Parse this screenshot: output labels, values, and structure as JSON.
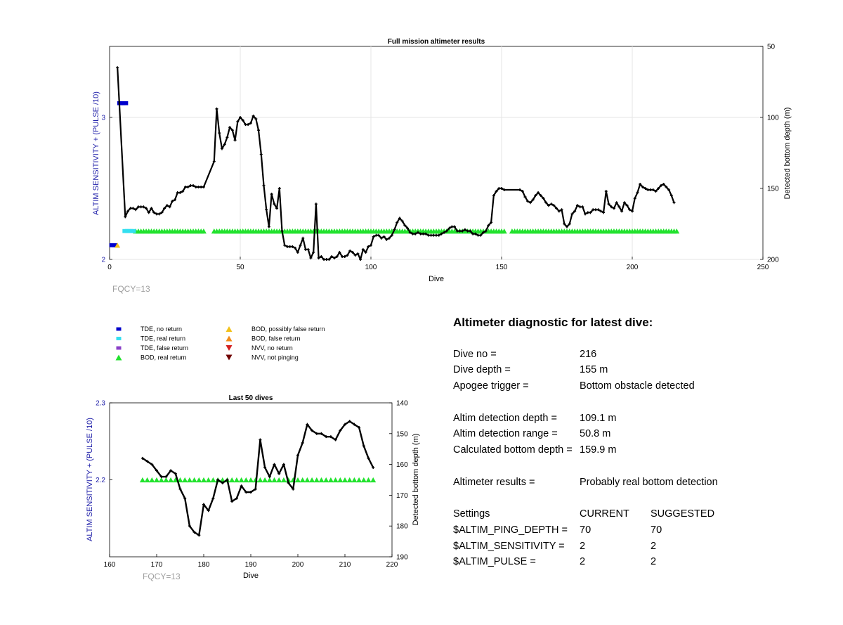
{
  "chart_data": [
    {
      "type": "line",
      "title": "Full mission altimeter results",
      "xlabel": "Dive",
      "ylabel": "ALTIM SENSITIVITY + (PULSE /10)",
      "y2label": "Detected bottom depth (m)",
      "xlim": [
        0,
        250
      ],
      "ylim": [
        2,
        3.5
      ],
      "y2lim": [
        200,
        50
      ],
      "y2_reversed": true,
      "grid": true,
      "x_ticks": [
        "0",
        "50",
        "100",
        "150",
        "200",
        "250"
      ],
      "y_ticks": [
        "2",
        "3"
      ],
      "y2_ticks": [
        "50",
        "100",
        "150",
        "200"
      ],
      "annotation": "FQCY=13",
      "series": [
        {
          "name": "Detected bottom depth",
          "axis": "y2",
          "color": "#000000",
          "x": [
            3,
            6,
            7,
            8,
            9,
            10,
            11,
            12,
            13,
            14,
            15,
            16,
            17,
            18,
            19,
            20,
            21,
            22,
            23,
            24,
            25,
            26,
            27,
            28,
            29,
            30,
            31,
            32,
            33,
            34,
            35,
            36,
            40,
            41,
            42,
            43,
            44,
            45,
            46,
            47,
            48,
            49,
            50,
            51,
            52,
            53,
            54,
            55,
            56,
            57,
            58,
            59,
            60,
            61,
            62,
            63,
            64,
            65,
            66,
            67,
            68,
            69,
            70,
            71,
            72,
            73,
            74,
            75,
            76,
            77,
            78,
            79,
            80,
            81,
            82,
            83,
            84,
            85,
            86,
            87,
            88,
            89,
            90,
            91,
            92,
            93,
            94,
            95,
            96,
            97,
            98,
            99,
            100,
            101,
            102,
            103,
            104,
            105,
            106,
            107,
            108,
            109,
            110,
            111,
            112,
            113,
            114,
            115,
            116,
            117,
            118,
            119,
            120,
            121,
            122,
            123,
            124,
            125,
            126,
            127,
            128,
            129,
            130,
            131,
            132,
            133,
            134,
            135,
            136,
            137,
            138,
            139,
            140,
            141,
            142,
            143,
            144,
            145,
            146,
            147,
            148,
            149,
            150,
            151,
            157,
            158,
            159,
            160,
            161,
            162,
            163,
            164,
            165,
            166,
            167,
            168,
            169,
            170,
            171,
            172,
            173,
            174,
            175,
            176,
            177,
            178,
            179,
            180,
            181,
            182,
            183,
            184,
            185,
            186,
            187,
            188,
            189,
            190,
            191,
            192,
            193,
            194,
            195,
            196,
            197,
            198,
            199,
            200,
            201,
            202,
            203,
            204,
            205,
            206,
            207,
            208,
            209,
            210,
            211,
            212,
            213,
            214,
            215,
            216
          ],
          "y": [
            65,
            170,
            166,
            164,
            164,
            165,
            163,
            163,
            163,
            164,
            167,
            164,
            167,
            168,
            168,
            167,
            164,
            162,
            163,
            159,
            158,
            153,
            153,
            152,
            149,
            149,
            148,
            148,
            149,
            149,
            149,
            149,
            131,
            94,
            111,
            122,
            119,
            114,
            107,
            109,
            116,
            103,
            100,
            102,
            105,
            105,
            104,
            99,
            101,
            109,
            126,
            148,
            165,
            177,
            154,
            161,
            164,
            150,
            180,
            190,
            191,
            191,
            191,
            192,
            195,
            190,
            185,
            193,
            193,
            199,
            195,
            161,
            199,
            198,
            200,
            200,
            200,
            198,
            199,
            198,
            195,
            198,
            198,
            197,
            194,
            195,
            197,
            196,
            200,
            193,
            195,
            191,
            190,
            184,
            183,
            183,
            185,
            184,
            186,
            185,
            183,
            179,
            174,
            171,
            173,
            176,
            178,
            181,
            182,
            182,
            181,
            182,
            182,
            182,
            183,
            183,
            183,
            183,
            183,
            182,
            181,
            180,
            178,
            177,
            177,
            180,
            180,
            180,
            179,
            180,
            180,
            182,
            182,
            183,
            183,
            181,
            180,
            176,
            174,
            155,
            152,
            150,
            150,
            151,
            151,
            152,
            156,
            159,
            160,
            158,
            155,
            153,
            155,
            157,
            160,
            162,
            161,
            162,
            164,
            166,
            165,
            175,
            177,
            175,
            168,
            166,
            162,
            163,
            163,
            168,
            167,
            167,
            165,
            165,
            165,
            166,
            167,
            152,
            161,
            163,
            164,
            160,
            163,
            166,
            160,
            162,
            165,
            166,
            157,
            153,
            147,
            149,
            150,
            151,
            151,
            151,
            152,
            150,
            148,
            147,
            149,
            151,
            155,
            160
          ]
        },
        {
          "name": "BOD, real return",
          "axis": "y",
          "marker": "triangle-up",
          "color": "#22e22e",
          "x_ranges": [
            [
              10,
              36
            ],
            [
              40,
              151
            ],
            [
              154,
              217
            ]
          ],
          "y": 2.2
        },
        {
          "name": "TDE, no return",
          "axis": "y",
          "marker": "square",
          "color": "#0000cc",
          "x": [
            1,
            2,
            4,
            5,
            6
          ],
          "y": [
            2.1,
            2.1,
            3.1,
            3.1,
            3.1
          ]
        },
        {
          "name": "TDE, real return",
          "axis": "y",
          "marker": "square",
          "color": "#33dff0",
          "x": [
            6,
            7,
            8,
            9
          ],
          "y": [
            2.2,
            2.2,
            2.2,
            2.2
          ]
        },
        {
          "name": "BOD, possibly false return",
          "axis": "y",
          "marker": "triangle-up",
          "color": "#f2c11b",
          "x": [
            3
          ],
          "y": [
            2.1
          ]
        }
      ]
    },
    {
      "type": "line",
      "title": "Last 50 dives",
      "xlabel": "Dive",
      "ylabel": "ALTIM SENSITIVITY + (PULSE /10)",
      "y2label": "Detected bottom depth (m)",
      "xlim": [
        160,
        220
      ],
      "ylim": [
        2.1,
        2.3
      ],
      "y2lim": [
        190,
        140
      ],
      "y2_reversed": true,
      "grid": false,
      "x_ticks": [
        "160",
        "170",
        "180",
        "190",
        "200",
        "210",
        "220"
      ],
      "y_ticks": [
        "2.2",
        "2.3"
      ],
      "y2_ticks": [
        "140",
        "150",
        "160",
        "170",
        "180",
        "190"
      ],
      "annotation": "FQCY=13",
      "series": [
        {
          "name": "Detected bottom depth",
          "axis": "y2",
          "color": "#000000",
          "x": [
            167,
            168,
            169,
            170,
            171,
            172,
            173,
            174,
            175,
            176,
            177,
            178,
            179,
            180,
            181,
            182,
            183,
            184,
            185,
            186,
            187,
            188,
            189,
            190,
            191,
            192,
            193,
            194,
            195,
            196,
            197,
            198,
            199,
            200,
            201,
            202,
            203,
            204,
            205,
            206,
            207,
            208,
            209,
            210,
            211,
            212,
            213,
            214,
            215,
            216
          ],
          "y": [
            158,
            159,
            160,
            162,
            164,
            164,
            162,
            163,
            168,
            171,
            180,
            182,
            183,
            173,
            175,
            171,
            165,
            166,
            165,
            172,
            171,
            167,
            169,
            169,
            168,
            152,
            161,
            164,
            160,
            163,
            160,
            166,
            168,
            157,
            153,
            147,
            149,
            150,
            150,
            151,
            151,
            152,
            149,
            147,
            146,
            147,
            148,
            154,
            158,
            161
          ]
        },
        {
          "name": "BOD, real return",
          "axis": "y",
          "marker": "triangle-up",
          "color": "#22e22e",
          "x_ranges": [
            [
              167,
              216
            ]
          ],
          "y": 2.2
        }
      ]
    }
  ],
  "legend": {
    "col1": [
      {
        "label": "TDE, no return",
        "marker": "square",
        "color": "#0000cc"
      },
      {
        "label": "TDE, real return",
        "marker": "square",
        "color": "#33dff0"
      },
      {
        "label": "TDE, false return",
        "marker": "square",
        "color": "#8a3fc8"
      },
      {
        "label": "BOD, real return",
        "marker": "triangle-up",
        "color": "#22e22e"
      }
    ],
    "col2": [
      {
        "label": "BOD, possibly false return",
        "marker": "triangle-up",
        "color": "#f2c11b"
      },
      {
        "label": "BOD, false return",
        "marker": "triangle-up",
        "color": "#f28c1b"
      },
      {
        "label": "NVV, no return",
        "marker": "triangle-down",
        "color": "#d42020"
      },
      {
        "label": "NVV, not pinging",
        "marker": "triangle-down",
        "color": "#700000"
      }
    ]
  },
  "diagnostic": {
    "title": "Altimeter diagnostic for latest dive:",
    "rows": [
      {
        "label": "Dive no =",
        "value": "216"
      },
      {
        "label": "Dive depth =",
        "value": "155 m"
      },
      {
        "label": "Apogee trigger =",
        "value": "Bottom obstacle detected"
      },
      {
        "label": "Altim detection depth =",
        "value": "109.1 m"
      },
      {
        "label": "Altim detection range =",
        "value": "50.8 m"
      },
      {
        "label": "Calculated bottom depth =",
        "value": "159.9 m"
      },
      {
        "label": "Altimeter results =",
        "value": "Probably real bottom detection"
      }
    ],
    "settings_header": {
      "label": "Settings",
      "current": "CURRENT",
      "suggested": "SUGGESTED"
    },
    "settings": [
      {
        "label": "$ALTIM_PING_DEPTH =",
        "current": "70",
        "suggested": "70"
      },
      {
        "label": "$ALTIM_SENSITIVITY =",
        "current": "2",
        "suggested": "2"
      },
      {
        "label": "$ALTIM_PULSE =",
        "current": "2",
        "suggested": "2"
      }
    ]
  }
}
